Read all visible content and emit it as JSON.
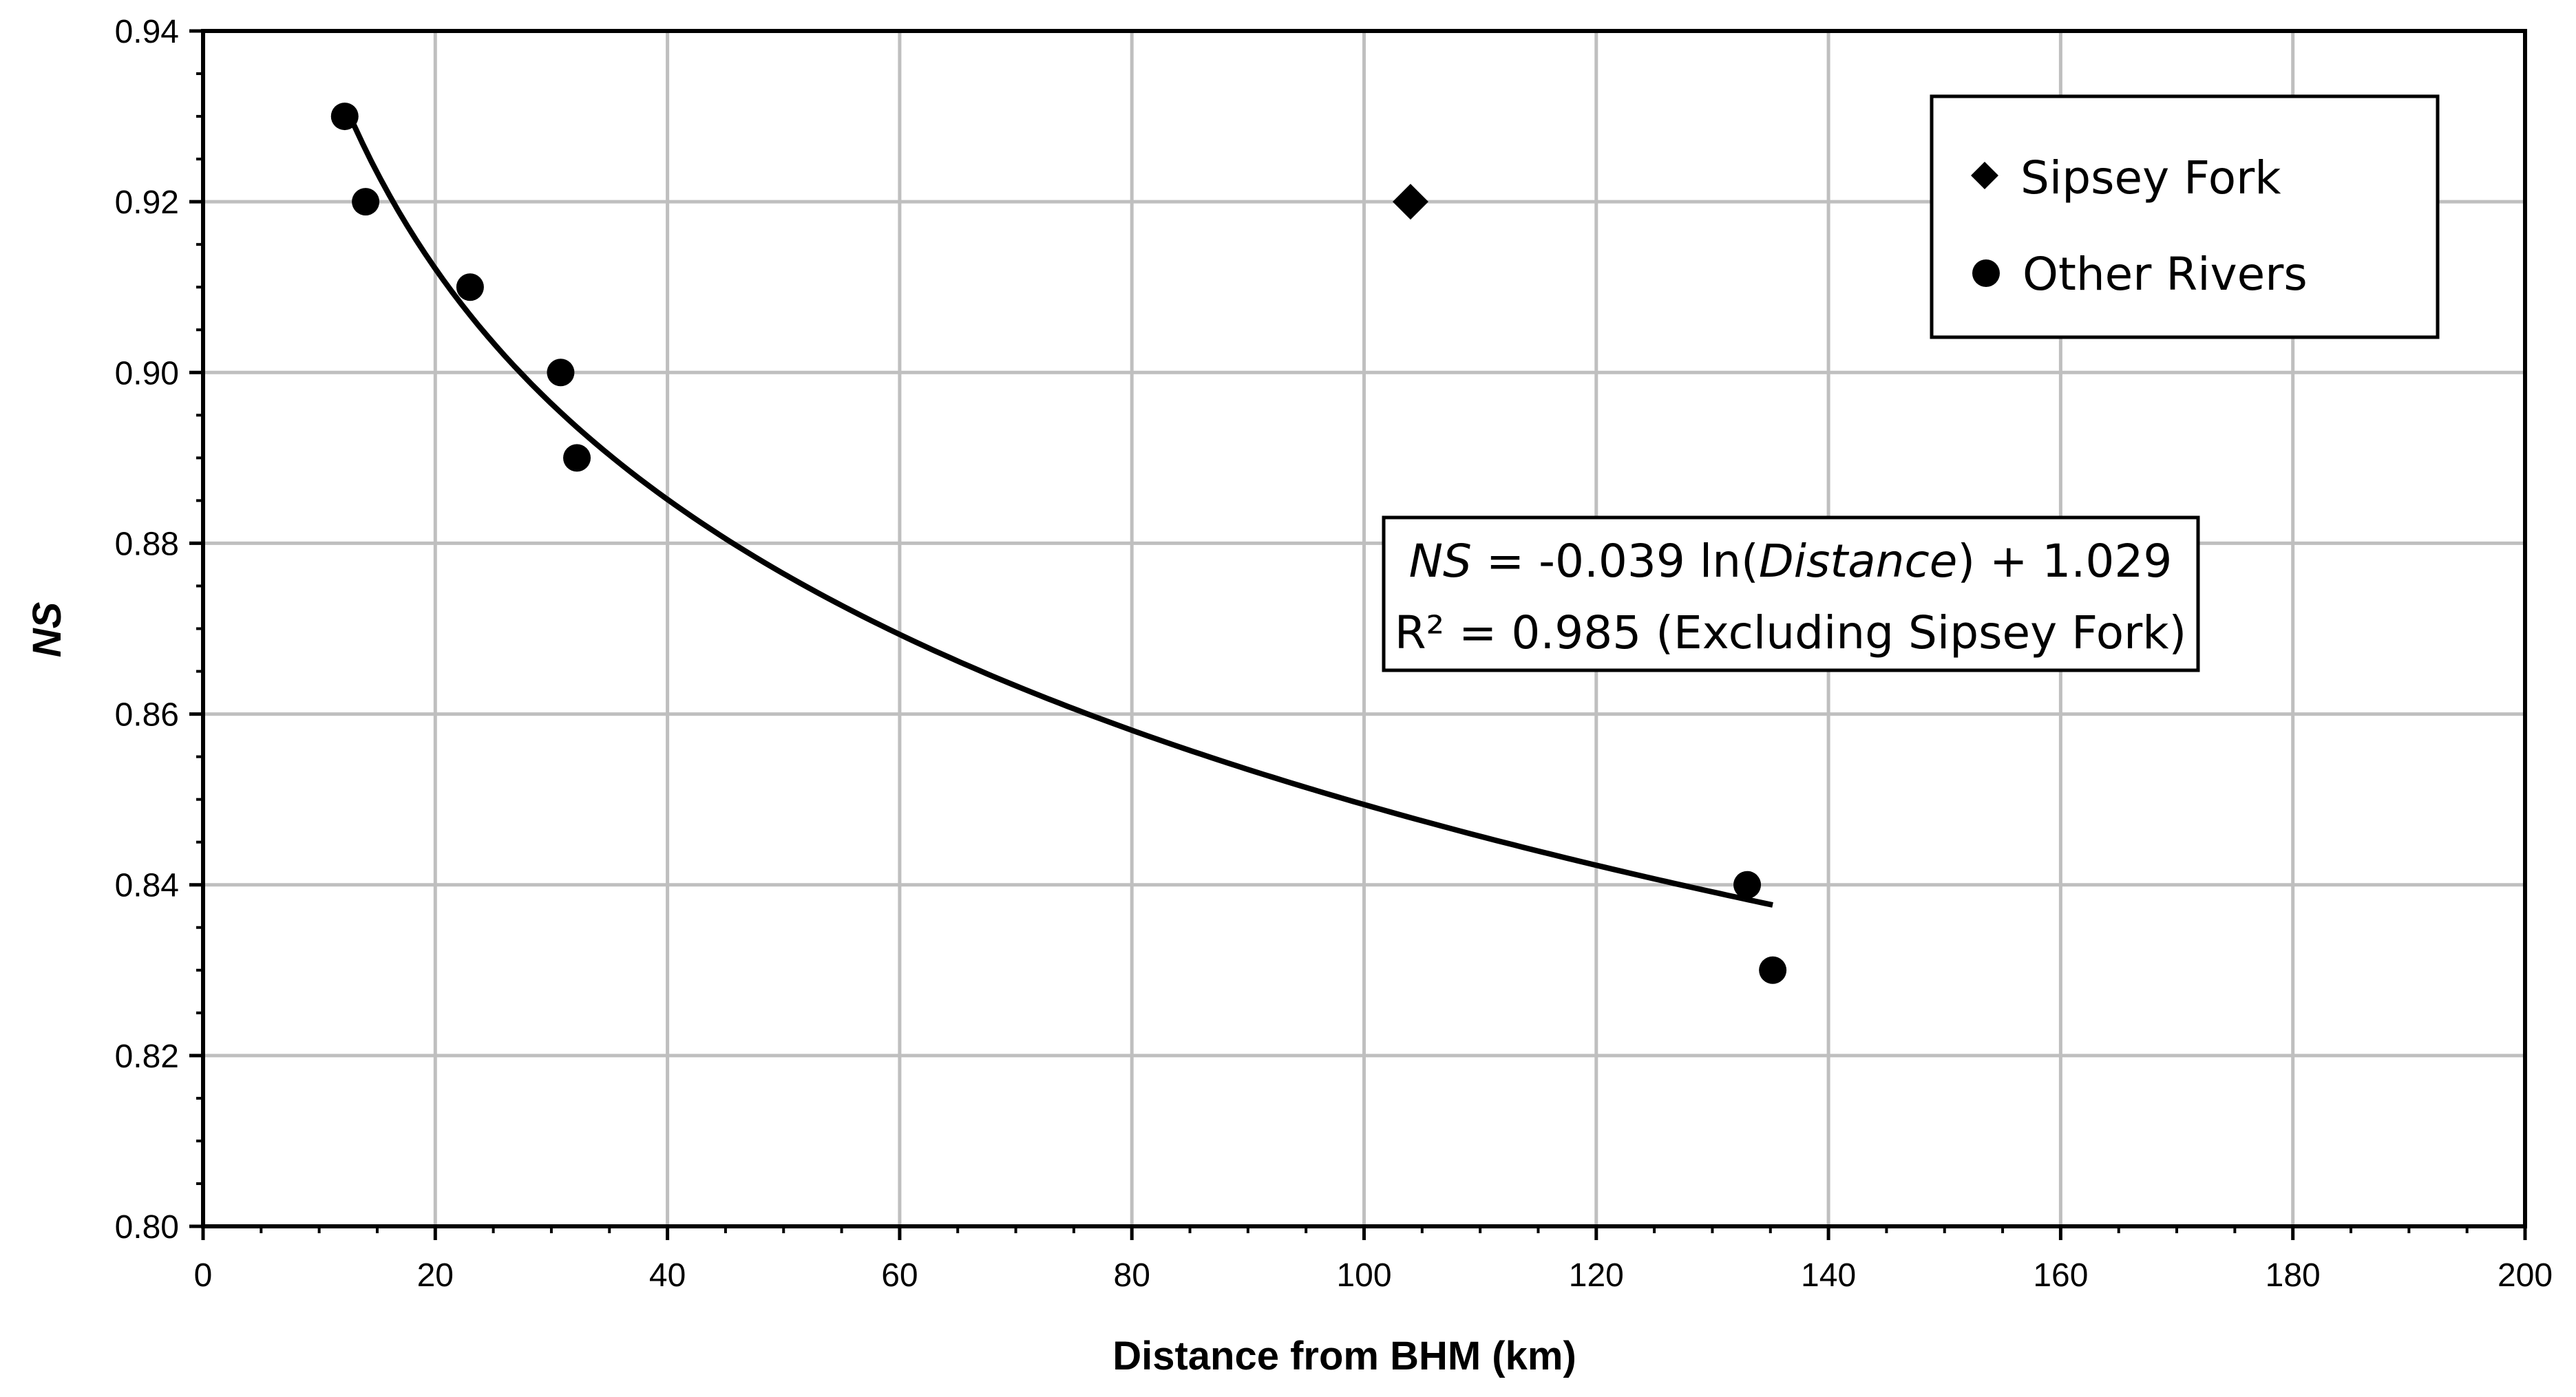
{
  "chart_data": {
    "type": "scatter",
    "xlabel": "Distance from BHM (km)",
    "ylabel": "NS",
    "xlim": [
      0,
      200
    ],
    "ylim": [
      0.8,
      0.94
    ],
    "x_ticks": [
      0,
      20,
      40,
      60,
      80,
      100,
      120,
      140,
      160,
      180,
      200
    ],
    "y_ticks": [
      0.8,
      0.82,
      0.84,
      0.86,
      0.88,
      0.9,
      0.92,
      0.94
    ],
    "x_tick_labels": [
      "0",
      "20",
      "40",
      "60",
      "80",
      "100",
      "120",
      "140",
      "160",
      "180",
      "200"
    ],
    "y_tick_labels": [
      "0.80",
      "0.82",
      "0.84",
      "0.86",
      "0.88",
      "0.90",
      "0.92",
      "0.94"
    ],
    "grid": true,
    "legend_position": "top-right",
    "series": [
      {
        "name": "Sipsey Fork",
        "marker": "diamond",
        "color": "#000000",
        "points": [
          [
            104,
            0.92
          ]
        ]
      },
      {
        "name": "Other Rivers",
        "marker": "circle",
        "color": "#000000",
        "points": [
          [
            12.2,
            0.93
          ],
          [
            14,
            0.92
          ],
          [
            23,
            0.91
          ],
          [
            30.8,
            0.9
          ],
          [
            32.2,
            0.89
          ],
          [
            133,
            0.84
          ],
          [
            135.2,
            0.83
          ]
        ]
      }
    ],
    "trendline": {
      "type": "logarithmic",
      "a": -0.039,
      "b": 1.029,
      "x_range": [
        12.2,
        135.2
      ],
      "color": "#000000"
    },
    "annotation": {
      "eq_var": "NS",
      "eq_mid": " = -0.039 ln(",
      "eq_arg": "Distance",
      "eq_end": ") + 1.029",
      "r2_label": "R²",
      "r2_text": " = 0.985 (Excluding Sipsey Fork)"
    }
  }
}
